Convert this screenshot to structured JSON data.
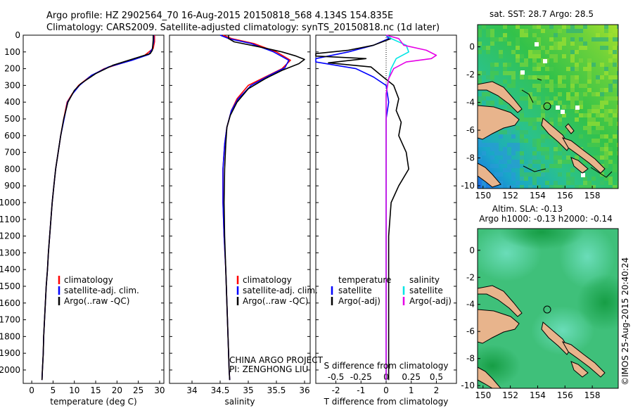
{
  "header": {
    "line1": "Argo profile: HZ 2902564_70 16-Aug-2015 20150818_568 4.134S 154.835E",
    "line2": "Climatology: CARS2009. Satellite-adjusted climatology: synTS_20150818.nc (1d later)"
  },
  "colors": {
    "climatology": "#ff0000",
    "satellite": "#0000ff",
    "argo": "#000000",
    "sal_satellite": "#00e5e5",
    "sal_argo": "#e600e6",
    "land": "#e8b48c"
  },
  "legend": {
    "climatology": "climatology",
    "satellite_adj": "satellite-adj. clim.",
    "argo_raw": "Argo(..raw -QC)",
    "temperature_title": "temperature",
    "salinity_title": "salinity",
    "satellite": "satellite",
    "argo_adj": "Argo(-adj)"
  },
  "annotation": {
    "project": "CHINA ARGO PROJECT",
    "pi": "PI: ZENGHONG LIU"
  },
  "map_sst": {
    "title": "sat. SST: 28.7 Argo: 28.5"
  },
  "map_sla": {
    "title_line1": "Altim. SLA: -0.13",
    "title_line2": "Argo h1000: -0.13 h2000: -0.14"
  },
  "credit": "©IMOS 25-Aug-2015 20:40:24",
  "chart_data": [
    {
      "type": "line",
      "xlabel": "temperature (deg C)",
      "ylabel": "",
      "xlim": [
        -2,
        31
      ],
      "ylim": [
        2080,
        0
      ],
      "xticks": [
        0,
        5,
        10,
        15,
        20,
        25,
        30
      ],
      "yticks": [
        0,
        100,
        200,
        300,
        400,
        500,
        600,
        700,
        800,
        900,
        1000,
        1100,
        1200,
        1300,
        1400,
        1500,
        1600,
        1700,
        1800,
        1900,
        2000
      ],
      "series": [
        {
          "name": "climatology",
          "points": [
            [
              28.8,
              0
            ],
            [
              28.8,
              40
            ],
            [
              28.5,
              80
            ],
            [
              26.5,
              120
            ],
            [
              22,
              160
            ],
            [
              17,
              200
            ],
            [
              13.5,
              250
            ],
            [
              11,
              300
            ],
            [
              9.5,
              350
            ],
            [
              8.3,
              400
            ],
            [
              7.5,
              500
            ],
            [
              6.8,
              600
            ],
            [
              6.2,
              700
            ],
            [
              5.6,
              800
            ],
            [
              5.2,
              900
            ],
            [
              4.8,
              1000
            ],
            [
              4.5,
              1100
            ],
            [
              4.2,
              1200
            ],
            [
              3.9,
              1300
            ],
            [
              3.7,
              1400
            ],
            [
              3.4,
              1500
            ],
            [
              3.2,
              1600
            ],
            [
              3,
              1700
            ],
            [
              2.8,
              1800
            ],
            [
              2.7,
              1900
            ],
            [
              2.5,
              2000
            ],
            [
              2.4,
              2060
            ]
          ]
        },
        {
          "name": "satellite-adj. clim.",
          "points": [
            [
              28.6,
              0
            ],
            [
              28.6,
              40
            ],
            [
              28.3,
              80
            ],
            [
              27.5,
              115
            ],
            [
              23.5,
              150
            ],
            [
              18,
              190
            ],
            [
              14,
              240
            ],
            [
              11.2,
              300
            ],
            [
              9.6,
              350
            ],
            [
              8.4,
              400
            ],
            [
              7.6,
              500
            ],
            [
              6.8,
              600
            ],
            [
              6.2,
              700
            ],
            [
              5.6,
              800
            ],
            [
              5.2,
              900
            ],
            [
              4.8,
              1000
            ],
            [
              4.5,
              1100
            ],
            [
              4.2,
              1200
            ],
            [
              3.9,
              1300
            ],
            [
              3.7,
              1400
            ],
            [
              3.4,
              1500
            ],
            [
              3.2,
              1600
            ],
            [
              3,
              1700
            ],
            [
              2.8,
              1800
            ],
            [
              2.7,
              1900
            ],
            [
              2.5,
              2000
            ],
            [
              2.4,
              2060
            ]
          ]
        },
        {
          "name": "Argo(..raw -QC)",
          "points": [
            [
              28.5,
              0
            ],
            [
              28.5,
              30
            ],
            [
              28.4,
              60
            ],
            [
              28.3,
              90
            ],
            [
              27.8,
              110
            ],
            [
              24,
              140
            ],
            [
              19,
              180
            ],
            [
              15,
              230
            ],
            [
              11.5,
              290
            ],
            [
              10,
              330
            ],
            [
              8.5,
              400
            ],
            [
              7.5,
              500
            ],
            [
              6.8,
              600
            ],
            [
              6.2,
              700
            ],
            [
              5.6,
              800
            ],
            [
              5.2,
              900
            ],
            [
              4.8,
              1000
            ],
            [
              4.5,
              1100
            ],
            [
              4.2,
              1200
            ],
            [
              3.9,
              1300
            ],
            [
              3.7,
              1400
            ],
            [
              3.4,
              1500
            ],
            [
              3.2,
              1600
            ],
            [
              3,
              1700
            ],
            [
              2.8,
              1800
            ],
            [
              2.7,
              1900
            ],
            [
              2.5,
              2000
            ],
            [
              2.4,
              2060
            ]
          ]
        }
      ]
    },
    {
      "type": "line",
      "xlabel": "salinity",
      "ylabel": "",
      "xlim": [
        33.6,
        36.1
      ],
      "ylim": [
        2080,
        0
      ],
      "xticks": [
        34,
        34.5,
        35,
        35.5,
        36
      ],
      "xticklabels": [
        "34",
        "34.5",
        "35",
        "35.5",
        "36"
      ],
      "series": [
        {
          "name": "climatology",
          "points": [
            [
              34.55,
              0
            ],
            [
              34.7,
              20
            ],
            [
              35.1,
              50
            ],
            [
              35.5,
              100
            ],
            [
              35.75,
              150
            ],
            [
              35.6,
              200
            ],
            [
              35.3,
              250
            ],
            [
              35.0,
              300
            ],
            [
              34.8,
              380
            ],
            [
              34.7,
              450
            ],
            [
              34.62,
              550
            ],
            [
              34.58,
              650
            ],
            [
              34.55,
              800
            ],
            [
              34.55,
              1000
            ],
            [
              34.57,
              1200
            ],
            [
              34.6,
              1400
            ],
            [
              34.62,
              1600
            ],
            [
              34.64,
              1800
            ],
            [
              34.66,
              2000
            ],
            [
              34.67,
              2060
            ]
          ]
        },
        {
          "name": "satellite-adj. clim.",
          "points": [
            [
              34.5,
              0
            ],
            [
              34.65,
              20
            ],
            [
              35.05,
              50
            ],
            [
              35.45,
              100
            ],
            [
              35.72,
              150
            ],
            [
              35.65,
              195
            ],
            [
              35.35,
              245
            ],
            [
              35.05,
              300
            ],
            [
              34.82,
              380
            ],
            [
              34.7,
              450
            ],
            [
              34.62,
              550
            ],
            [
              34.58,
              650
            ],
            [
              34.55,
              800
            ],
            [
              34.55,
              1000
            ],
            [
              34.57,
              1200
            ],
            [
              34.6,
              1400
            ],
            [
              34.62,
              1600
            ],
            [
              34.64,
              1800
            ],
            [
              34.66,
              2000
            ],
            [
              34.67,
              2060
            ]
          ]
        },
        {
          "name": "Argo(..raw -QC)",
          "points": [
            [
              34.65,
              0
            ],
            [
              34.65,
              20
            ],
            [
              34.75,
              40
            ],
            [
              35.2,
              70
            ],
            [
              35.6,
              100
            ],
            [
              35.85,
              125
            ],
            [
              36.0,
              145
            ],
            [
              35.9,
              170
            ],
            [
              35.6,
              210
            ],
            [
              35.3,
              260
            ],
            [
              35.0,
              320
            ],
            [
              34.8,
              400
            ],
            [
              34.68,
              480
            ],
            [
              34.62,
              550
            ],
            [
              34.6,
              650
            ],
            [
              34.58,
              800
            ],
            [
              34.57,
              1000
            ],
            [
              34.58,
              1200
            ],
            [
              34.6,
              1400
            ],
            [
              34.62,
              1600
            ],
            [
              34.64,
              1800
            ],
            [
              34.66,
              2000
            ],
            [
              34.67,
              2060
            ]
          ]
        }
      ]
    },
    {
      "type": "line",
      "xlabel": "T difference from climatology",
      "top_xlabel": "S difference from climatology",
      "xlim": [
        -2.8,
        2.8
      ],
      "ylim": [
        2080,
        0
      ],
      "xticks": [
        -2,
        -1,
        0,
        1,
        2
      ],
      "top_xticks": [
        -2,
        -1,
        0,
        1,
        2
      ],
      "top_xticklabels": [
        "-0.5",
        "-0.25",
        "0",
        "0.25",
        "0.5"
      ],
      "series": [
        {
          "name": "temperature satellite",
          "points": [
            [
              0,
              0
            ],
            [
              0.1,
              20
            ],
            [
              -0.5,
              60
            ],
            [
              -1.5,
              100
            ],
            [
              -2.8,
              140
            ],
            [
              -2.8,
              160
            ],
            [
              -1.2,
              200
            ],
            [
              -0.5,
              250
            ],
            [
              0,
              300
            ],
            [
              0.1,
              400
            ],
            [
              0,
              500
            ],
            [
              0,
              700
            ],
            [
              0,
              1000
            ],
            [
              0,
              1500
            ],
            [
              0,
              2060
            ]
          ]
        },
        {
          "name": "temperature Argo(-adj)",
          "points": [
            [
              0,
              0
            ],
            [
              0.2,
              20
            ],
            [
              -0.5,
              60
            ],
            [
              -1.5,
              90
            ],
            [
              -2.8,
              110
            ],
            [
              -2.8,
              125
            ],
            [
              -0.8,
              140
            ],
            [
              -2.3,
              165
            ],
            [
              -0.6,
              190
            ],
            [
              -0.2,
              240
            ],
            [
              0.3,
              300
            ],
            [
              0.5,
              380
            ],
            [
              0.4,
              450
            ],
            [
              0.6,
              520
            ],
            [
              0.5,
              600
            ],
            [
              0.8,
              700
            ],
            [
              0.9,
              800
            ],
            [
              0.5,
              900
            ],
            [
              0.2,
              1000
            ],
            [
              0.1,
              1200
            ],
            [
              0.1,
              1500
            ],
            [
              0.1,
              1800
            ],
            [
              0.1,
              2060
            ]
          ]
        },
        {
          "name": "salinity satellite",
          "points": [
            [
              0,
              0
            ],
            [
              0.2,
              20
            ],
            [
              0.8,
              60
            ],
            [
              0.9,
              100
            ],
            [
              0.4,
              140
            ],
            [
              0.2,
              200
            ],
            [
              0.1,
              260
            ],
            [
              0,
              350
            ],
            [
              0,
              700
            ],
            [
              0,
              1500
            ],
            [
              0,
              2060
            ]
          ]
        },
        {
          "name": "salinity Argo(-adj)",
          "points": [
            [
              0,
              0
            ],
            [
              0.5,
              20
            ],
            [
              0.7,
              60
            ],
            [
              1.6,
              90
            ],
            [
              2.0,
              120
            ],
            [
              1.8,
              140
            ],
            [
              0.8,
              160
            ],
            [
              0.3,
              200
            ],
            [
              0.1,
              260
            ],
            [
              0,
              350
            ],
            [
              0,
              700
            ],
            [
              0,
              1500
            ],
            [
              0,
              2060
            ]
          ]
        }
      ]
    },
    {
      "type": "heatmap",
      "title": "sat. SST: 28.7 Argo: 28.5",
      "xlim": [
        149.6,
        159.9
      ],
      "ylim": [
        -10.2,
        1.6
      ],
      "xticks": [
        150,
        152,
        154,
        156,
        158
      ],
      "yticks": [
        0,
        -2,
        -4,
        -6,
        -8,
        -10
      ],
      "marker": [
        154.835,
        -4.134
      ]
    },
    {
      "type": "heatmap",
      "title": "Altim. SLA: -0.13 Argo h1000: -0.13 h2000: -0.14",
      "xlim": [
        149.6,
        159.9
      ],
      "ylim": [
        -10.2,
        1.6
      ],
      "xticks": [
        150,
        152,
        154,
        156,
        158
      ],
      "yticks": [
        0,
        -2,
        -4,
        -6,
        -8,
        -10
      ],
      "marker": [
        154.835,
        -4.134
      ]
    }
  ]
}
